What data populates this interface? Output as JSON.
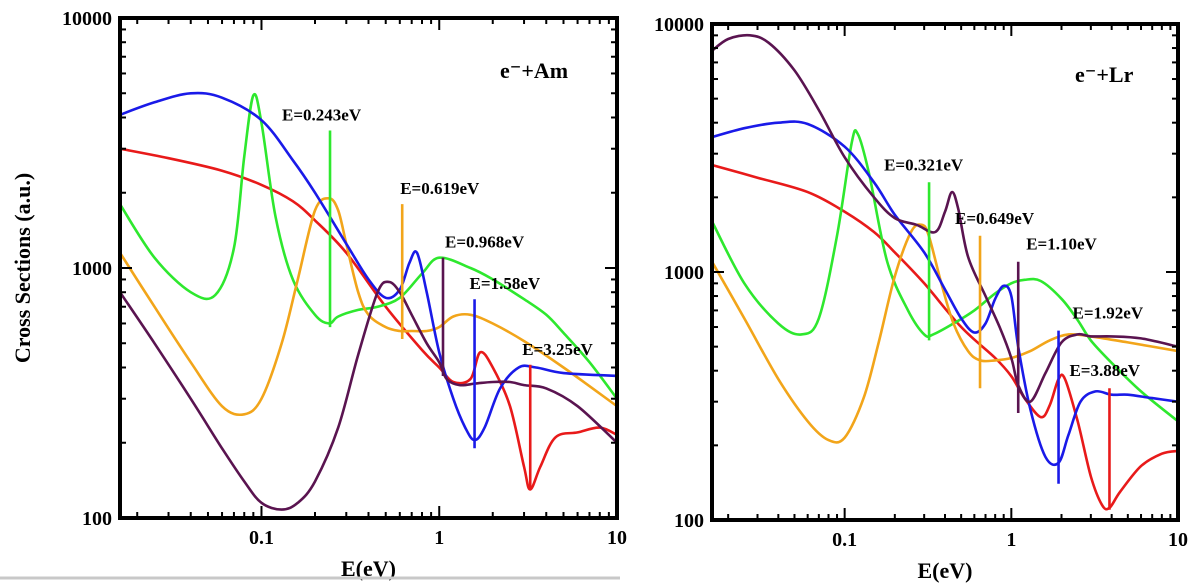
{
  "chart_data": [
    {
      "type": "line",
      "panel_label": "e⁻+Am",
      "xlabel": "E(eV)",
      "ylabel": "Cross Sections (a.u.)",
      "xscale": "log",
      "yscale": "log",
      "xlim": [
        0.016,
        10
      ],
      "ylim": [
        100,
        10000
      ],
      "x_ticks": [
        "0.1",
        "1",
        "10"
      ],
      "y_ticks": [
        "100",
        "1000",
        "10000"
      ],
      "annotations": [
        {
          "text": "E=0.243eV",
          "x": 0.243,
          "color": "#2ee82e",
          "y_low": 580,
          "y_high": 3550
        },
        {
          "text": "E=0.619eV",
          "x": 0.619,
          "color": "#f2a51a",
          "y_low": 520,
          "y_high": 1800
        },
        {
          "text": "E=0.968eV",
          "x": 1.05,
          "color": "#5a1450",
          "y_low": 370,
          "y_high": 1100
        },
        {
          "text": "E=1.58eV",
          "x": 1.58,
          "color": "#1a1ae8",
          "y_low": 190,
          "y_high": 750
        },
        {
          "text": "E=3.25eV",
          "x": 3.25,
          "color": "#e81a1a",
          "y_low": 130,
          "y_high": 410
        }
      ],
      "series": [
        {
          "color": "#e81a1a",
          "x": [
            0.016,
            0.03,
            0.06,
            0.1,
            0.15,
            0.2,
            0.3,
            0.5,
            0.8,
            1.0,
            1.2,
            1.5,
            1.7,
            2.0,
            2.5,
            3.0,
            3.25,
            3.7,
            4.5,
            6,
            8,
            10
          ],
          "y": [
            3000,
            2750,
            2450,
            2150,
            1850,
            1550,
            1150,
            700,
            470,
            400,
            350,
            360,
            460,
            400,
            280,
            160,
            130,
            160,
            210,
            220,
            230,
            215
          ]
        },
        {
          "color": "#2ee82e",
          "x": [
            0.016,
            0.025,
            0.04,
            0.055,
            0.07,
            0.08,
            0.09,
            0.1,
            0.12,
            0.15,
            0.2,
            0.24,
            0.27,
            0.35,
            0.45,
            0.6,
            0.8,
            1.0,
            1.5,
            2.0,
            3.0,
            4.0,
            5.0,
            7.0,
            10
          ],
          "y": [
            1800,
            1100,
            800,
            780,
            1200,
            2800,
            4900,
            3800,
            1600,
            900,
            650,
            600,
            640,
            680,
            700,
            760,
            950,
            1100,
            1000,
            900,
            750,
            650,
            550,
            420,
            300
          ]
        },
        {
          "color": "#f2a51a",
          "x": [
            0.016,
            0.025,
            0.04,
            0.06,
            0.08,
            0.1,
            0.13,
            0.16,
            0.2,
            0.24,
            0.27,
            0.3,
            0.35,
            0.4,
            0.5,
            0.6,
            0.7,
            0.85,
            1.0,
            1.2,
            1.5,
            2.0,
            3.0,
            5.0,
            10
          ],
          "y": [
            1150,
            700,
            420,
            280,
            260,
            300,
            500,
            900,
            1700,
            1900,
            1700,
            1250,
            800,
            650,
            580,
            560,
            560,
            560,
            580,
            640,
            650,
            600,
            510,
            400,
            280
          ]
        },
        {
          "color": "#1a1ae8",
          "x": [
            0.016,
            0.025,
            0.04,
            0.06,
            0.1,
            0.15,
            0.2,
            0.3,
            0.4,
            0.5,
            0.6,
            0.68,
            0.75,
            0.85,
            1.0,
            1.2,
            1.4,
            1.58,
            1.8,
            2.2,
            2.8,
            3.5,
            5.0,
            10
          ],
          "y": [
            4100,
            4600,
            5000,
            4800,
            3900,
            2700,
            2000,
            1250,
            900,
            760,
            820,
            1050,
            1150,
            800,
            460,
            300,
            230,
            205,
            230,
            330,
            400,
            400,
            380,
            370
          ]
        },
        {
          "color": "#5a1450",
          "x": [
            0.016,
            0.025,
            0.04,
            0.06,
            0.08,
            0.1,
            0.13,
            0.16,
            0.2,
            0.27,
            0.35,
            0.45,
            0.52,
            0.6,
            0.7,
            0.85,
            1.0,
            1.1,
            1.3,
            1.6,
            2.0,
            2.5,
            3.0,
            4.0,
            6.0,
            10
          ],
          "y": [
            800,
            500,
            300,
            190,
            140,
            115,
            108,
            115,
            140,
            230,
            450,
            800,
            880,
            800,
            650,
            500,
            420,
            360,
            340,
            345,
            350,
            350,
            340,
            330,
            280,
            200
          ]
        }
      ]
    },
    {
      "type": "line",
      "panel_label": "e⁻+Lr",
      "xlabel": "E(eV)",
      "ylabel": "",
      "xscale": "log",
      "yscale": "log",
      "xlim": [
        0.016,
        10
      ],
      "ylim": [
        100,
        10000
      ],
      "x_ticks": [
        "0.1",
        "1",
        "10"
      ],
      "y_ticks": [
        "100",
        "1000",
        "10000"
      ],
      "annotations": [
        {
          "text": "E=0.321eV",
          "x": 0.321,
          "color": "#2ee82e",
          "y_low": 530,
          "y_high": 2300
        },
        {
          "text": "E=0.649eV",
          "x": 0.649,
          "color": "#f2a51a",
          "y_low": 340,
          "y_high": 1400
        },
        {
          "text": "E=1.10eV",
          "x": 1.1,
          "color": "#5a1450",
          "y_low": 270,
          "y_high": 1100
        },
        {
          "text": "E=1.92eV",
          "x": 1.92,
          "color": "#1a1ae8",
          "y_low": 140,
          "y_high": 580
        },
        {
          "text": "E=3.88eV",
          "x": 3.88,
          "color": "#e81a1a",
          "y_low": 110,
          "y_high": 340
        }
      ],
      "series": [
        {
          "color": "#e81a1a",
          "x": [
            0.016,
            0.03,
            0.06,
            0.1,
            0.15,
            0.2,
            0.3,
            0.5,
            0.8,
            1.0,
            1.2,
            1.5,
            1.7,
            1.92,
            2.1,
            2.5,
            3.0,
            3.5,
            3.88,
            4.5,
            6,
            8,
            10
          ],
          "y": [
            2700,
            2400,
            2100,
            1750,
            1450,
            1200,
            900,
            600,
            450,
            380,
            310,
            260,
            290,
            370,
            370,
            250,
            150,
            115,
            112,
            130,
            165,
            185,
            190
          ]
        },
        {
          "color": "#2ee82e",
          "x": [
            0.016,
            0.025,
            0.04,
            0.055,
            0.07,
            0.09,
            0.11,
            0.12,
            0.14,
            0.18,
            0.24,
            0.3,
            0.34,
            0.45,
            0.6,
            0.8,
            1.0,
            1.2,
            1.5,
            2.0,
            2.5,
            3.0,
            4.0,
            6.0,
            10
          ],
          "y": [
            1600,
            900,
            620,
            560,
            650,
            1400,
            3300,
            3600,
            2500,
            1100,
            700,
            560,
            560,
            620,
            700,
            820,
            900,
            930,
            920,
            780,
            640,
            530,
            430,
            330,
            250
          ]
        },
        {
          "color": "#f2a51a",
          "x": [
            0.016,
            0.025,
            0.04,
            0.06,
            0.08,
            0.1,
            0.13,
            0.16,
            0.2,
            0.25,
            0.29,
            0.32,
            0.38,
            0.45,
            0.55,
            0.65,
            0.8,
            1.0,
            1.3,
            1.7,
            2.2,
            3.0,
            5.0,
            10
          ],
          "y": [
            1100,
            650,
            370,
            250,
            210,
            215,
            310,
            520,
            960,
            1450,
            1550,
            1400,
            900,
            620,
            480,
            440,
            440,
            450,
            480,
            530,
            560,
            550,
            520,
            480
          ]
        },
        {
          "color": "#1a1ae8",
          "x": [
            0.016,
            0.025,
            0.04,
            0.06,
            0.1,
            0.15,
            0.2,
            0.3,
            0.4,
            0.5,
            0.6,
            0.7,
            0.8,
            0.9,
            1.0,
            1.1,
            1.3,
            1.6,
            1.92,
            2.2,
            2.6,
            3.2,
            4.0,
            5.0,
            7.0,
            10
          ],
          "y": [
            3500,
            3800,
            4000,
            3950,
            3200,
            2300,
            1700,
            1200,
            850,
            650,
            570,
            620,
            780,
            880,
            800,
            500,
            280,
            180,
            170,
            220,
            300,
            330,
            320,
            320,
            310,
            300
          ]
        },
        {
          "color": "#5a1450",
          "x": [
            0.016,
            0.02,
            0.027,
            0.035,
            0.05,
            0.07,
            0.1,
            0.15,
            0.2,
            0.27,
            0.35,
            0.4,
            0.44,
            0.48,
            0.55,
            0.7,
            0.85,
            1.0,
            1.1,
            1.3,
            1.6,
            2.0,
            2.5,
            3.0,
            4.0,
            6.0,
            10
          ],
          "y": [
            7800,
            8700,
            9000,
            8400,
            6500,
            4500,
            2900,
            2000,
            1650,
            1550,
            1450,
            1750,
            2100,
            1800,
            1150,
            800,
            600,
            450,
            350,
            300,
            390,
            520,
            560,
            550,
            550,
            540,
            500
          ]
        }
      ]
    }
  ]
}
